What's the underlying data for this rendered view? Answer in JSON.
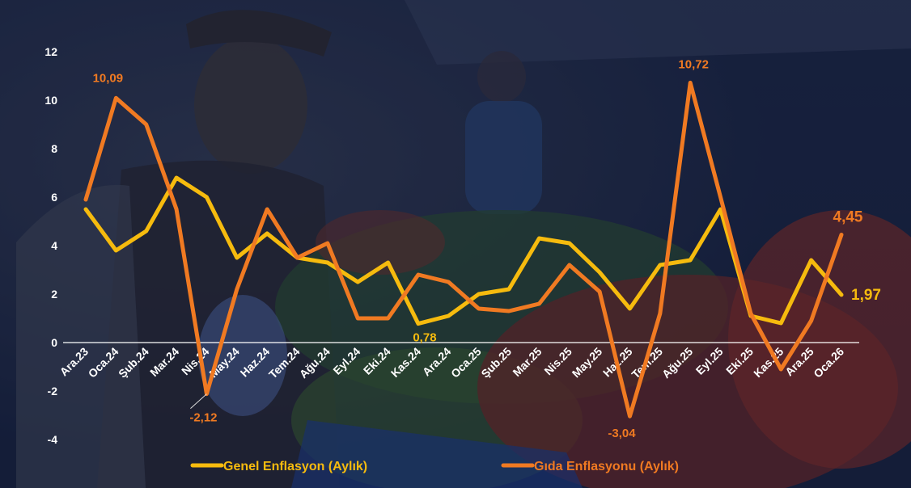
{
  "chart_data": {
    "type": "line",
    "categories": [
      "Ara.23",
      "Oca.24",
      "Şub.24",
      "Mar.24",
      "Nis.24",
      "May.24",
      "Haz.24",
      "Tem.24",
      "Ağu.24",
      "Eyl.24",
      "Eki.24",
      "Kas.24",
      "Ara.24",
      "Oca.25",
      "Şub.25",
      "Mar.25",
      "Nis.25",
      "May.25",
      "Haz.25",
      "Tem.25",
      "Ağu.25",
      "Eyl.25",
      "Eki.25",
      "Kas.25",
      "Ara.25",
      "Oca.26"
    ],
    "ylim": [
      -4,
      12
    ],
    "yticks": [
      "-4",
      "-2",
      "0",
      "2",
      "4",
      "6",
      "8",
      "10",
      "12"
    ],
    "grid": false,
    "legend_position": "bottom",
    "series": [
      {
        "name": "Genel Enflasyon (Aylık)",
        "color": "#f6bb0e",
        "values": [
          5.5,
          3.8,
          4.6,
          6.8,
          6.0,
          3.5,
          4.5,
          3.5,
          3.3,
          2.5,
          3.3,
          0.78,
          1.1,
          2.0,
          2.2,
          4.3,
          4.1,
          2.9,
          1.4,
          3.2,
          3.4,
          5.5,
          1.1,
          0.8,
          3.4,
          1.97
        ]
      },
      {
        "name": "Gıda Enflasyonu (Aylık)",
        "color": "#f07a22",
        "values": [
          5.9,
          10.09,
          9.0,
          5.5,
          -2.12,
          2.2,
          5.5,
          3.5,
          4.1,
          1.0,
          1.0,
          2.8,
          2.5,
          1.4,
          1.3,
          1.6,
          3.2,
          2.1,
          -3.04,
          1.2,
          10.72,
          6.0,
          1.2,
          -1.1,
          0.9,
          4.45
        ]
      }
    ],
    "annotations": [
      {
        "series": 1,
        "index": 1,
        "text": "10,09"
      },
      {
        "series": 1,
        "index": 4,
        "text": "-2,12"
      },
      {
        "series": 0,
        "index": 11,
        "text": "0,78"
      },
      {
        "series": 1,
        "index": 18,
        "text": "-3,04"
      },
      {
        "series": 1,
        "index": 20,
        "text": "10,72"
      },
      {
        "series": 1,
        "index": 25,
        "text": "4,45"
      },
      {
        "series": 0,
        "index": 25,
        "text": "1,97"
      }
    ]
  }
}
